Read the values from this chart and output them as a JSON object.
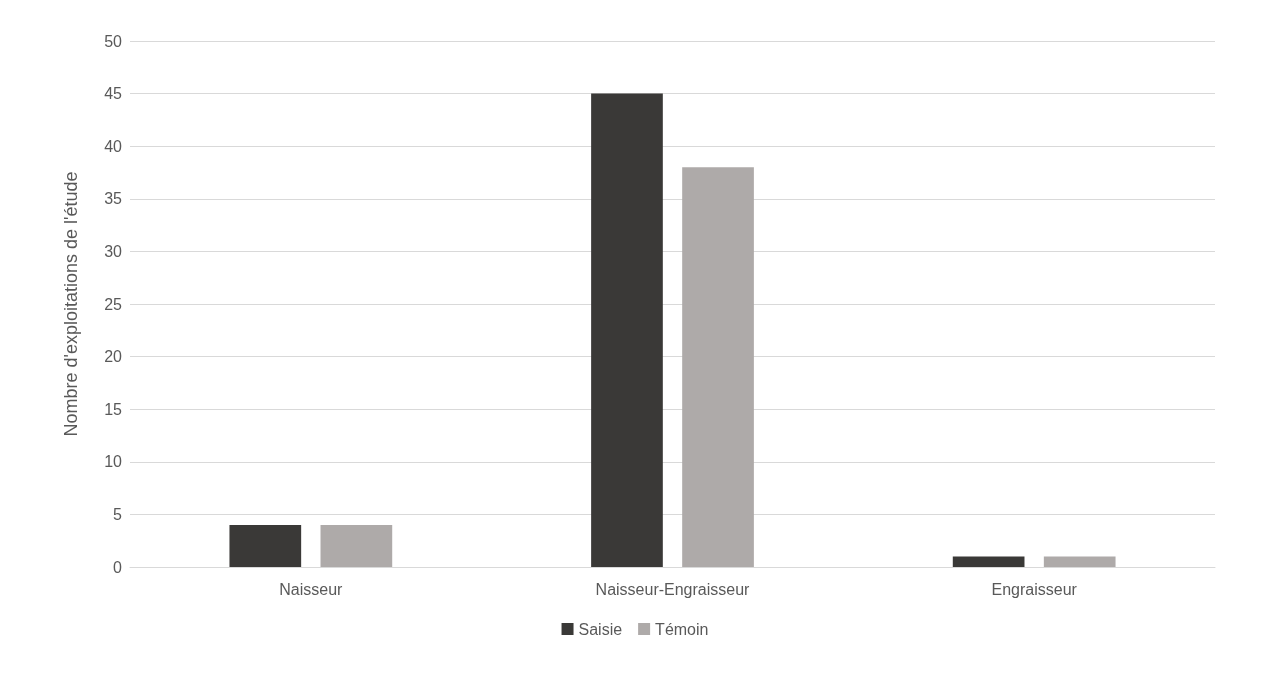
{
  "chart_data": {
    "type": "bar",
    "ylabel": "Nombre d'exploitations de l'étude",
    "categories": [
      "Naisseur",
      "Naisseur-Engraisseur",
      "Engraisseur"
    ],
    "series": [
      {
        "name": "Saisie",
        "color": "#3a3937",
        "values": [
          4,
          45,
          1
        ]
      },
      {
        "name": "Témoin",
        "color": "#aeaaa9",
        "values": [
          4,
          38,
          1
        ]
      }
    ],
    "ylim": [
      0,
      50
    ],
    "yticks": [
      0,
      5,
      10,
      15,
      20,
      25,
      30,
      35,
      40,
      45,
      50
    ],
    "grid": "y",
    "legend": "bottom"
  }
}
